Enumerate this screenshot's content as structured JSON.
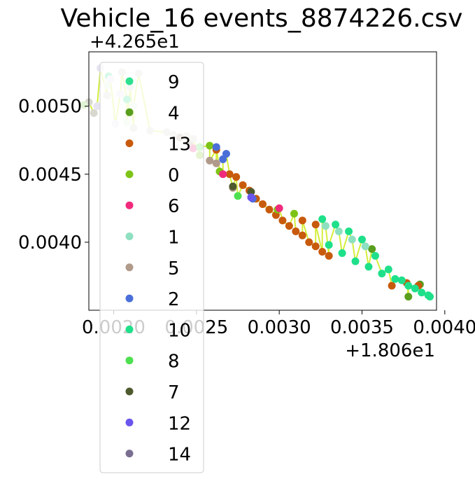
{
  "chart_data": {
    "type": "scatter",
    "title": "Vehicle_16 events_8874226.csv",
    "xlabel": "",
    "ylabel": "",
    "x_offset_label": "+1.806e1",
    "y_offset_label": "+4.265e1",
    "xlim": [
      0.00185,
      0.00395
    ],
    "ylim": [
      0.0035,
      0.0054
    ],
    "x_ticks": [
      {
        "value": 0.002,
        "label": "0.0020"
      },
      {
        "value": 0.0025,
        "label": "0.0025"
      },
      {
        "value": 0.003,
        "label": "0.0030"
      },
      {
        "value": 0.0035,
        "label": "0.0035"
      },
      {
        "value": 0.004,
        "label": "0.0040"
      }
    ],
    "y_ticks": [
      {
        "value": 0.004,
        "label": "0.0040"
      },
      {
        "value": 0.0045,
        "label": "0.0045"
      },
      {
        "value": 0.005,
        "label": "0.0050"
      }
    ],
    "grid": false,
    "legend_position": "left-overlapping",
    "path_line_color": "#d4ee3c",
    "series": [
      {
        "name": "9",
        "color": "#2ee08e",
        "points": [
          [
            0.00197,
            0.00522
          ],
          [
            0.00208,
            0.00505
          ]
        ]
      },
      {
        "name": "4",
        "color": "#5a9e1e",
        "points": [
          [
            0.00356,
            0.00395
          ],
          [
            0.00378,
            0.0036
          ],
          [
            0.00385,
            0.00369
          ]
        ]
      },
      {
        "name": "13",
        "color": "#c85a0c",
        "points": [
          [
            0.00262,
            0.00468
          ],
          [
            0.0027,
            0.0045
          ],
          [
            0.00278,
            0.00442
          ],
          [
            0.00286,
            0.00432
          ],
          [
            0.00294,
            0.00424
          ],
          [
            0.00302,
            0.00416
          ],
          [
            0.0031,
            0.00408
          ],
          [
            0.00318,
            0.004
          ],
          [
            0.00326,
            0.00393
          ],
          [
            0.00274,
            0.00448
          ],
          [
            0.00282,
            0.00438
          ],
          [
            0.0029,
            0.00428
          ],
          [
            0.00298,
            0.0042
          ],
          [
            0.00306,
            0.00412
          ],
          [
            0.00314,
            0.00405
          ],
          [
            0.00322,
            0.00397
          ],
          [
            0.0033,
            0.0039
          ],
          [
            0.00314,
            0.00416
          ],
          [
            0.00322,
            0.00413
          ],
          [
            0.00368,
            0.00368
          ],
          [
            0.00377,
            0.0037
          ],
          [
            0.00384,
            0.00368
          ]
        ]
      },
      {
        "name": "0",
        "color": "#7ec418",
        "points": [
          [
            0.00252,
            0.00464
          ],
          [
            0.00258,
            0.00471
          ],
          [
            0.00264,
            0.00452
          ],
          [
            0.00299,
            0.00424
          ],
          [
            0.00309,
            0.00421
          ]
        ]
      },
      {
        "name": "6",
        "color": "#f02a7c",
        "points": [
          [
            0.00248,
            0.00469
          ],
          [
            0.00266,
            0.0045
          ],
          [
            0.003,
            0.00425
          ]
        ]
      },
      {
        "name": "1",
        "color": "#8ee0c0",
        "points": [
          [
            0.00328,
            0.00412
          ],
          [
            0.00336,
            0.00408
          ],
          [
            0.00344,
            0.00402
          ],
          [
            0.00352,
            0.00397
          ]
        ]
      },
      {
        "name": "5",
        "color": "#b09a8a",
        "points": [
          [
            0.0024,
            0.00477
          ],
          [
            0.00246,
            0.00474
          ],
          [
            0.00258,
            0.0046
          ],
          [
            0.00262,
            0.00458
          ],
          [
            0.00272,
            0.0044
          ]
        ]
      },
      {
        "name": "2",
        "color": "#4a6fd8",
        "points": [
          [
            0.00262,
            0.0047
          ],
          [
            0.00268,
            0.00465
          ],
          [
            0.00266,
            0.00461
          ],
          [
            0.00284,
            0.00432
          ]
        ]
      },
      {
        "name": "10",
        "color": "#1fe08a",
        "points": [
          [
            0.00326,
            0.00417
          ],
          [
            0.00334,
            0.00413
          ],
          [
            0.00342,
            0.00408
          ],
          [
            0.0035,
            0.00402
          ],
          [
            0.00358,
            0.0039
          ],
          [
            0.00366,
            0.0038
          ],
          [
            0.00374,
            0.00372
          ],
          [
            0.00382,
            0.00366
          ],
          [
            0.0039,
            0.00361
          ],
          [
            0.0033,
            0.00398
          ],
          [
            0.00338,
            0.00392
          ],
          [
            0.00346,
            0.00386
          ],
          [
            0.00354,
            0.00382
          ],
          [
            0.00362,
            0.00377
          ],
          [
            0.0037,
            0.00373
          ],
          [
            0.00378,
            0.00368
          ],
          [
            0.00386,
            0.00363
          ],
          [
            0.00391,
            0.0036
          ]
        ]
      },
      {
        "name": "8",
        "color": "#4ee050",
        "points": [
          [
            0.00275,
            0.00434
          ],
          [
            0.00252,
            0.0047
          ]
        ]
      },
      {
        "name": "7",
        "color": "#4e5a2e",
        "points": [
          [
            0.00272,
            0.00441
          ],
          [
            0.00283,
            0.00437
          ]
        ]
      },
      {
        "name": "12",
        "color": "#6a55ee",
        "points": [
          [
            0.00283,
            0.00433
          ]
        ]
      },
      {
        "name": "14",
        "color": "#7a6e90",
        "points": []
      },
      {
        "name": "",
        "color": "#d8d8d0",
        "points": [
          [
            0.00205,
            0.00525
          ],
          [
            0.00215,
            0.00524
          ],
          [
            0.0021,
            0.00514
          ],
          [
            0.00196,
            0.00508
          ],
          [
            0.00185,
            0.00503
          ],
          [
            0.00212,
            0.00484
          ],
          [
            0.00222,
            0.00482
          ],
          [
            0.00232,
            0.00481
          ],
          [
            0.00236,
            0.00479
          ],
          [
            0.00244,
            0.00478
          ],
          [
            0.00248,
            0.00476
          ],
          [
            0.00188,
            0.00495
          ]
        ]
      },
      {
        "name": "",
        "color": "#e6e4f2",
        "points": [
          [
            0.00192,
            0.00528
          ],
          [
            0.00198,
            0.0052
          ],
          [
            0.00204,
            0.00509
          ],
          [
            0.0019,
            0.005
          ],
          [
            0.00201,
            0.00487
          ]
        ]
      },
      {
        "name": "",
        "color": "#e0f4d4",
        "points": [
          [
            0.00182,
            0.00501
          ],
          [
            0.00208,
            0.00488
          ],
          [
            0.00196,
            0.00515
          ],
          [
            0.00212,
            0.005
          ]
        ]
      }
    ]
  }
}
